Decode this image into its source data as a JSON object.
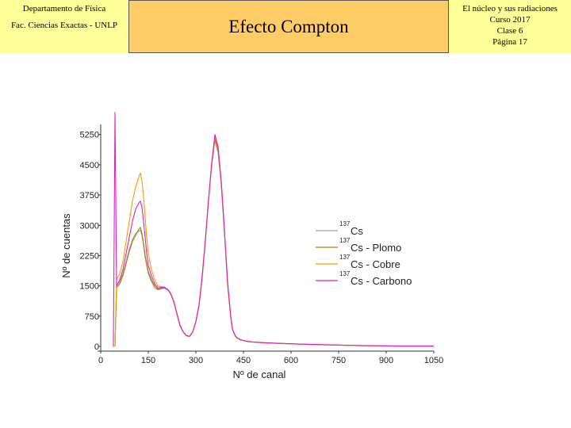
{
  "header": {
    "department": "Departamento de Física",
    "faculty": "Fac. Ciencias Exactas - UNLP",
    "title": "Efecto Compton",
    "course_lines": [
      "El núcleo y sus radiaciones",
      "Curso 2017",
      "Clase 6",
      "Página 17"
    ]
  },
  "colors": {
    "header_side_bg": "#ffff99",
    "header_center_bg": "#ffcc66"
  },
  "chart_data": {
    "type": "line",
    "title": "",
    "xlabel": "Nº de canal",
    "ylabel": "Nº de cuentas",
    "xlim": [
      0,
      1050
    ],
    "ylim": [
      0,
      5500
    ],
    "xticks": [
      "0",
      "150",
      "300",
      "450",
      "600",
      "750",
      "900",
      "1050"
    ],
    "yticks": [
      "0",
      "750",
      "1500",
      "2250",
      "3000",
      "3750",
      "4500",
      "5250"
    ],
    "grid": false,
    "legend_position": "right",
    "x": [
      40,
      45,
      50,
      60,
      70,
      80,
      90,
      100,
      110,
      120,
      125,
      130,
      135,
      140,
      145,
      150,
      160,
      170,
      180,
      190,
      200,
      210,
      220,
      230,
      240,
      250,
      260,
      270,
      280,
      290,
      300,
      310,
      320,
      330,
      340,
      350,
      360,
      370,
      380,
      390,
      400,
      410,
      415,
      420,
      425,
      430,
      435,
      440,
      445,
      450,
      460,
      470,
      480,
      500,
      520,
      550,
      600,
      650,
      700,
      750,
      800,
      850,
      900,
      950,
      1000,
      1050
    ],
    "series": [
      {
        "name": "Cs",
        "superscript": "137",
        "color": "#a0a0a0",
        "values": [
          0,
          0,
          1500,
          1600,
          1800,
          2100,
          2400,
          2650,
          2800,
          2850,
          2880,
          2750,
          2500,
          2200,
          2000,
          1800,
          1600,
          1450,
          1400,
          1420,
          1440,
          1400,
          1300,
          1100,
          800,
          500,
          350,
          260,
          240,
          350,
          600,
          1000,
          1700,
          2600,
          3600,
          4500,
          5100,
          4800,
          4000,
          2800,
          1500,
          700,
          420,
          320,
          240,
          200,
          180,
          160,
          150,
          140,
          120,
          110,
          105,
          95,
          85,
          75,
          60,
          50,
          40,
          30,
          20,
          15,
          10,
          5,
          5,
          5
        ]
      },
      {
        "name": "Cs - Plomo",
        "superscript": "137",
        "color": "#a08000",
        "values": [
          0,
          0,
          1450,
          1550,
          1750,
          2050,
          2350,
          2600,
          2750,
          2900,
          2950,
          2800,
          2550,
          2250,
          2050,
          1850,
          1650,
          1500,
          1420,
          1440,
          1460,
          1420,
          1320,
          1120,
          820,
          520,
          360,
          270,
          250,
          360,
          620,
          1030,
          1750,
          2650,
          3650,
          4550,
          5150,
          4850,
          4050,
          2850,
          1550,
          720,
          430,
          330,
          250,
          210,
          185,
          165,
          155,
          145,
          125,
          115,
          108,
          98,
          88,
          78,
          62,
          52,
          42,
          32,
          22,
          16,
          11,
          6,
          6,
          6
        ]
      },
      {
        "name": "Cs - Cobre",
        "superscript": "137",
        "color": "#ff9900",
        "values": [
          0,
          0,
          1650,
          1800,
          2100,
          2600,
          3100,
          3600,
          3950,
          4200,
          4300,
          4100,
          3700,
          3200,
          2700,
          2300,
          1900,
          1650,
          1500,
          1480,
          1470,
          1420,
          1320,
          1120,
          820,
          520,
          360,
          270,
          250,
          360,
          620,
          1030,
          1750,
          2650,
          3650,
          4550,
          5200,
          4900,
          4050,
          2850,
          1550,
          720,
          430,
          330,
          250,
          210,
          185,
          165,
          155,
          145,
          125,
          115,
          108,
          98,
          88,
          78,
          62,
          52,
          42,
          32,
          22,
          16,
          11,
          6,
          6,
          6
        ]
      },
      {
        "name": "Cs - Carbono",
        "superscript": "137",
        "color": "#e020c0",
        "values": [
          0,
          5800,
          1500,
          1650,
          1900,
          2300,
          2700,
          3100,
          3400,
          3550,
          3600,
          3450,
          3100,
          2700,
          2300,
          2000,
          1750,
          1550,
          1450,
          1460,
          1470,
          1420,
          1320,
          1120,
          820,
          520,
          360,
          270,
          250,
          360,
          620,
          1030,
          1750,
          2650,
          3650,
          4550,
          5250,
          4950,
          4100,
          2900,
          1600,
          740,
          440,
          340,
          260,
          215,
          190,
          170,
          158,
          148,
          128,
          118,
          110,
          100,
          90,
          80,
          64,
          54,
          44,
          34,
          24,
          18,
          12,
          7,
          7,
          7
        ]
      }
    ]
  }
}
